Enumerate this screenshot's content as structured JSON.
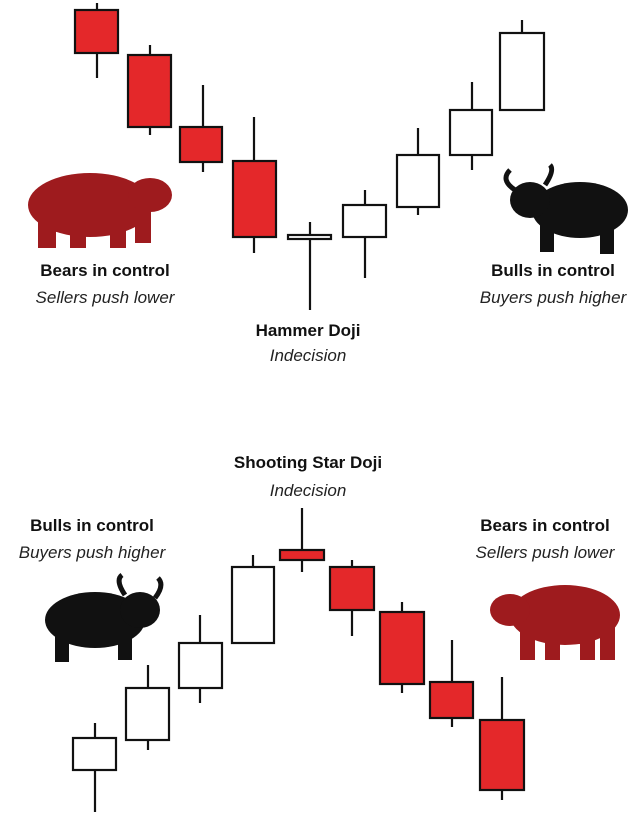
{
  "top": {
    "left_label": {
      "title": "Bears in control",
      "subtitle": "Sellers push lower"
    },
    "right_label": {
      "title": "Bulls in control",
      "subtitle": "Buyers push higher"
    },
    "center_label": {
      "title": "Hammer Doji",
      "subtitle": "Indecision"
    }
  },
  "bottom": {
    "center_label": {
      "title": "Shooting Star Doji",
      "subtitle": "Indecision"
    },
    "left_label": {
      "title": "Bulls in control",
      "subtitle": "Buyers push higher"
    },
    "right_label": {
      "title": "Bears in control",
      "subtitle": "Sellers push lower"
    }
  }
}
